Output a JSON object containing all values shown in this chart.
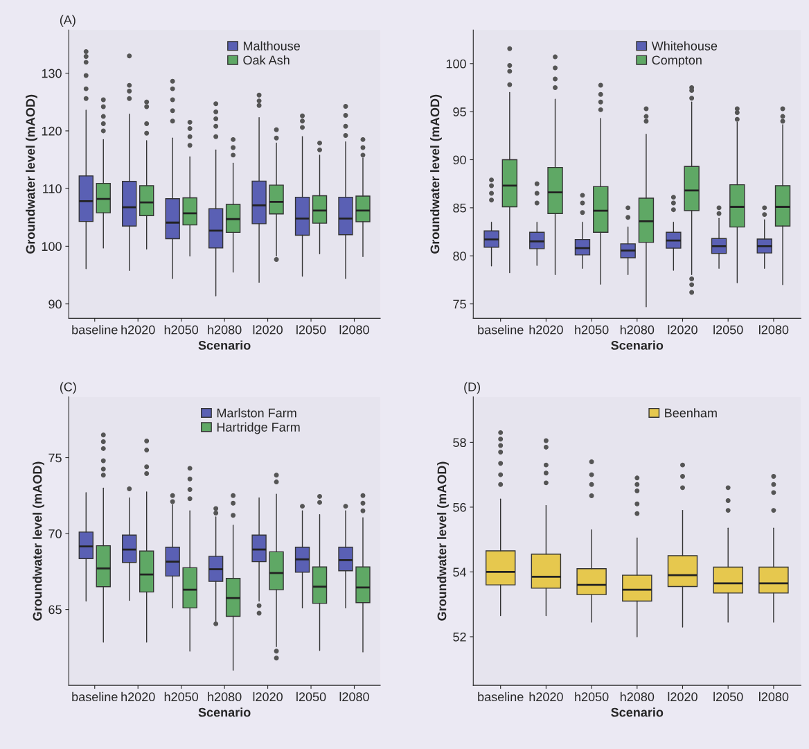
{
  "chart_data": [
    {
      "type": "box",
      "title": "(A)",
      "xlabel": "Scenario",
      "ylabel": "Groundwater level (mAOD)",
      "categories": [
        "baseline",
        "h2020",
        "h2050",
        "h2080",
        "l2020",
        "l2050",
        "l2080"
      ],
      "ylim": [
        87.5,
        137.5
      ],
      "yticks": [
        90,
        100,
        110,
        120,
        130
      ],
      "legend": "top right",
      "series": [
        {
          "name": "Malthouse",
          "color": "#5a60b4",
          "boxes": [
            {
              "low": 96.1,
              "q1": 104.3,
              "median": 107.8,
              "q3": 112.2,
              "high": 123.6,
              "outliers": [
                125.6,
                127.3,
                129.6,
                131.9,
                132.9,
                133.75
              ]
            },
            {
              "low": 95.8,
              "q1": 103.5,
              "median": 106.75,
              "q3": 111.25,
              "high": 122.9,
              "outliers": [
                125.6,
                126.9,
                127.9,
                133
              ]
            },
            {
              "low": 94.4,
              "q1": 101.3,
              "median": 104.1,
              "q3": 108.25,
              "high": 118.75,
              "outliers": [
                121.7,
                123.5,
                125.4,
                127.3,
                128.6
              ]
            },
            {
              "low": 91.4,
              "q1": 99.7,
              "median": 102.7,
              "q3": 106.5,
              "high": 116.7,
              "outliers": [
                119,
                120.8,
                122.1,
                123.3,
                124.7
              ]
            },
            {
              "low": 93.75,
              "q1": 103.9,
              "median": 107.1,
              "q3": 111.3,
              "high": 122.3,
              "outliers": [
                124.4,
                125.2,
                126.2
              ]
            },
            {
              "low": 94.8,
              "q1": 101.9,
              "median": 104.8,
              "q3": 108.5,
              "high": 119,
              "outliers": [
                120.6,
                121.7,
                122.6
              ]
            },
            {
              "low": 94.4,
              "q1": 102,
              "median": 104.8,
              "q3": 108.5,
              "high": 118.1,
              "outliers": [
                119.2,
                120.8,
                122.7,
                124.25
              ]
            }
          ]
        },
        {
          "name": "Oak Ash",
          "color": "#5fa865",
          "boxes": [
            {
              "low": 99.7,
              "q1": 105.8,
              "median": 108.2,
              "q3": 110.9,
              "high": 118.5,
              "outliers": [
                120,
                121.25,
                122.5,
                124.2,
                125.4
              ]
            },
            {
              "low": 99.5,
              "q1": 105.3,
              "median": 107.6,
              "q3": 110.5,
              "high": 118.3,
              "outliers": [
                119.6,
                121.25,
                124.2,
                125
              ]
            },
            {
              "low": 98.3,
              "q1": 103.7,
              "median": 105.7,
              "q3": 108.4,
              "high": 115.5,
              "outliers": [
                117.5,
                119,
                120.4,
                121.5
              ]
            },
            {
              "low": 95.5,
              "q1": 102.4,
              "median": 104.7,
              "q3": 107.25,
              "high": 114.4,
              "outliers": [
                115.8,
                117.1,
                118.5
              ]
            },
            {
              "low": 98.3,
              "q1": 105.6,
              "median": 107.7,
              "q3": 110.6,
              "high": 117.9,
              "outliers": [
                97.7,
                118.75,
                120.2
              ]
            },
            {
              "low": 98.7,
              "q1": 104,
              "median": 106.2,
              "q3": 108.75,
              "high": 115.8,
              "outliers": [
                116.7,
                117.9
              ]
            },
            {
              "low": 98.2,
              "q1": 104.25,
              "median": 106.2,
              "q3": 108.7,
              "high": 115.3,
              "outliers": [
                115.8,
                117.1,
                118.5
              ]
            }
          ]
        }
      ]
    },
    {
      "type": "box",
      "xlabel": "Scenario",
      "ylabel": "Groundwater level (mAOD)",
      "categories": [
        "baseline",
        "h2020",
        "h2050",
        "h2080",
        "l2020",
        "l2050",
        "l2080"
      ],
      "ylim": [
        73.5,
        103.5
      ],
      "yticks": [
        75,
        80,
        85,
        90,
        95,
        100
      ],
      "legend": "top right",
      "series": [
        {
          "name": "Whitehouse",
          "color": "#5a60b4",
          "boxes": [
            {
              "low": 78.95,
              "q1": 80.9,
              "median": 81.7,
              "q3": 82.6,
              "high": 83.5,
              "outliers": [
                85.8,
                86.5,
                87.3,
                87.9
              ]
            },
            {
              "low": 79,
              "q1": 80.75,
              "median": 81.5,
              "q3": 82.45,
              "high": 83.5,
              "outliers": [
                85.5,
                86.5,
                87.5
              ]
            },
            {
              "low": 78.7,
              "q1": 80.1,
              "median": 80.8,
              "q3": 81.7,
              "high": 83.5,
              "outliers": [
                84.5,
                85.5,
                86.3
              ]
            },
            {
              "low": 78.05,
              "q1": 79.8,
              "median": 80.55,
              "q3": 81.25,
              "high": 83,
              "outliers": [
                84,
                85
              ]
            },
            {
              "low": 78.5,
              "q1": 80.8,
              "median": 81.6,
              "q3": 82.45,
              "high": 83.5,
              "outliers": [
                84.8,
                85.5,
                86.1
              ]
            },
            {
              "low": 78.7,
              "q1": 80.25,
              "median": 81,
              "q3": 81.8,
              "high": 83.9,
              "outliers": [
                84.4,
                85
              ]
            },
            {
              "low": 78.7,
              "q1": 80.3,
              "median": 81,
              "q3": 81.75,
              "high": 83.75,
              "outliers": [
                84.3,
                85
              ]
            }
          ]
        },
        {
          "name": "Compton",
          "color": "#5fa865",
          "boxes": [
            {
              "low": 78.25,
              "q1": 85.1,
              "median": 87.3,
              "q3": 90,
              "high": 97,
              "outliers": [
                97.8,
                99.2,
                99.8,
                101.55
              ]
            },
            {
              "low": 78.05,
              "q1": 84.4,
              "median": 86.6,
              "q3": 89.2,
              "high": 96.3,
              "outliers": [
                97.5,
                98.4,
                99.55,
                100.7
              ]
            },
            {
              "low": 77.05,
              "q1": 82.45,
              "median": 84.7,
              "q3": 87.2,
              "high": 94.3,
              "outliers": [
                95.2,
                96,
                96.8,
                97.75
              ]
            },
            {
              "low": 74.7,
              "q1": 81.4,
              "median": 83.6,
              "q3": 86,
              "high": 92.65,
              "outliers": [
                94,
                94.5,
                95.3
              ]
            },
            {
              "low": 78.05,
              "q1": 84.7,
              "median": 86.8,
              "q3": 89.3,
              "high": 96,
              "outliers": [
                76.2,
                77,
                77.6,
                96.4,
                97.2,
                97.5
              ]
            },
            {
              "low": 77.2,
              "q1": 83,
              "median": 85.1,
              "q3": 87.4,
              "high": 93.9,
              "outliers": [
                94.2,
                94.9,
                95.3
              ]
            },
            {
              "low": 77,
              "q1": 83.1,
              "median": 85.1,
              "q3": 87.3,
              "high": 93.65,
              "outliers": [
                94,
                94.5,
                95.3
              ]
            }
          ]
        }
      ]
    },
    {
      "type": "box",
      "title": "(C)",
      "xlabel": "Scenario",
      "ylabel": "Groundwater level (mAOD)",
      "categories": [
        "baseline",
        "h2020",
        "h2050",
        "h2080",
        "l2020",
        "l2050",
        "l2080"
      ],
      "ylim": [
        60,
        79
      ],
      "yticks": [
        65,
        70,
        75
      ],
      "legend": "top right",
      "series": [
        {
          "name": "Marlston Farm",
          "color": "#5a60b4",
          "boxes": [
            {
              "low": 65.55,
              "q1": 68.35,
              "median": 69.15,
              "q3": 70.1,
              "high": 72.7
            },
            {
              "low": 65.6,
              "q1": 68.1,
              "median": 68.95,
              "q3": 69.9,
              "high": 72.35,
              "outliers": [
                72.95
              ]
            },
            {
              "low": 65.1,
              "q1": 67.2,
              "median": 68.15,
              "q3": 69.1,
              "high": 71.9,
              "outliers": [
                72.1,
                72.5
              ]
            },
            {
              "low": 64.2,
              "q1": 66.85,
              "median": 67.65,
              "q3": 68.5,
              "high": 71.1,
              "outliers": [
                64.05,
                71.35,
                71.65
              ]
            },
            {
              "low": 65.55,
              "q1": 68.15,
              "median": 68.95,
              "q3": 69.9,
              "high": 72.35,
              "outliers": [
                64.75,
                65.25
              ]
            },
            {
              "low": 65.1,
              "q1": 67.45,
              "median": 68.3,
              "q3": 69.1,
              "high": 71.5,
              "outliers": [
                71.8
              ]
            },
            {
              "low": 65.1,
              "q1": 67.55,
              "median": 68.25,
              "q3": 69.1,
              "high": 71.5,
              "outliers": [
                71.8
              ]
            }
          ]
        },
        {
          "name": "Hartridge Farm",
          "color": "#5fa865",
          "boxes": [
            {
              "low": 62.85,
              "q1": 66.5,
              "median": 67.7,
              "q3": 69.2,
              "high": 73,
              "outliers": [
                73.85,
                74.25,
                74.8,
                75.6,
                76.05,
                76.5
              ]
            },
            {
              "low": 62.85,
              "q1": 66.15,
              "median": 67.3,
              "q3": 68.85,
              "high": 72.75,
              "outliers": [
                73.95,
                74.4,
                75.5,
                76.1
              ]
            },
            {
              "low": 62.25,
              "q1": 65.1,
              "median": 66.3,
              "q3": 67.75,
              "high": 71.5,
              "outliers": [
                72.3,
                72.9,
                73.6,
                74.3
              ]
            },
            {
              "low": 61,
              "q1": 64.55,
              "median": 65.75,
              "q3": 67.05,
              "high": 70.55,
              "outliers": [
                71.2,
                72,
                72.5
              ]
            },
            {
              "low": 62.55,
              "q1": 66.3,
              "median": 67.4,
              "q3": 68.8,
              "high": 72.6,
              "outliers": [
                61.8,
                62.25,
                73.4,
                73.85
              ]
            },
            {
              "low": 62.3,
              "q1": 65.4,
              "median": 66.5,
              "q3": 67.8,
              "high": 71.25,
              "outliers": [
                72.05,
                72.45
              ]
            },
            {
              "low": 62.2,
              "q1": 65.45,
              "median": 66.45,
              "q3": 67.8,
              "high": 71.05,
              "outliers": [
                71.5,
                72,
                72.5
              ]
            }
          ]
        }
      ]
    },
    {
      "type": "box",
      "title": "(D)",
      "xlabel": "Scenario",
      "ylabel": "Groundwater level (mAOD)",
      "categories": [
        "baseline",
        "h2020",
        "h2050",
        "h2080",
        "l2020",
        "l2050",
        "l2080"
      ],
      "ylim": [
        50.5,
        59.4
      ],
      "yticks": [
        52,
        54,
        56,
        58
      ],
      "legend": "top right",
      "series": [
        {
          "name": "Beenham",
          "color": "#e6c84e",
          "boxes": [
            {
              "low": 52.65,
              "q1": 53.6,
              "median": 54.0,
              "q3": 54.65,
              "high": 56.25,
              "outliers": [
                56.7,
                57,
                57.35,
                57.7,
                57.9,
                58.1,
                58.3
              ]
            },
            {
              "low": 52.65,
              "q1": 53.5,
              "median": 53.85,
              "q3": 54.55,
              "high": 56.05,
              "outliers": [
                56.75,
                57.05,
                57.3,
                57.85,
                58.05
              ]
            },
            {
              "low": 52.45,
              "q1": 53.3,
              "median": 53.6,
              "q3": 54.1,
              "high": 55.3,
              "outliers": [
                56.35,
                56.7,
                57,
                57.4
              ]
            },
            {
              "low": 52,
              "q1": 53.1,
              "median": 53.45,
              "q3": 53.9,
              "high": 55.05,
              "outliers": [
                55.8,
                56.1,
                56.5,
                56.7,
                56.9
              ]
            },
            {
              "low": 52.3,
              "q1": 53.55,
              "median": 53.9,
              "q3": 54.5,
              "high": 55.9,
              "outliers": [
                56.6,
                56.95,
                57.3
              ]
            },
            {
              "low": 52.45,
              "q1": 53.35,
              "median": 53.65,
              "q3": 54.15,
              "high": 55.35,
              "outliers": [
                55.9,
                56.2,
                56.6
              ]
            },
            {
              "low": 52.45,
              "q1": 53.35,
              "median": 53.65,
              "q3": 54.15,
              "high": 55.35,
              "outliers": [
                55.9,
                56.45,
                56.7,
                56.95
              ]
            }
          ]
        }
      ]
    }
  ]
}
